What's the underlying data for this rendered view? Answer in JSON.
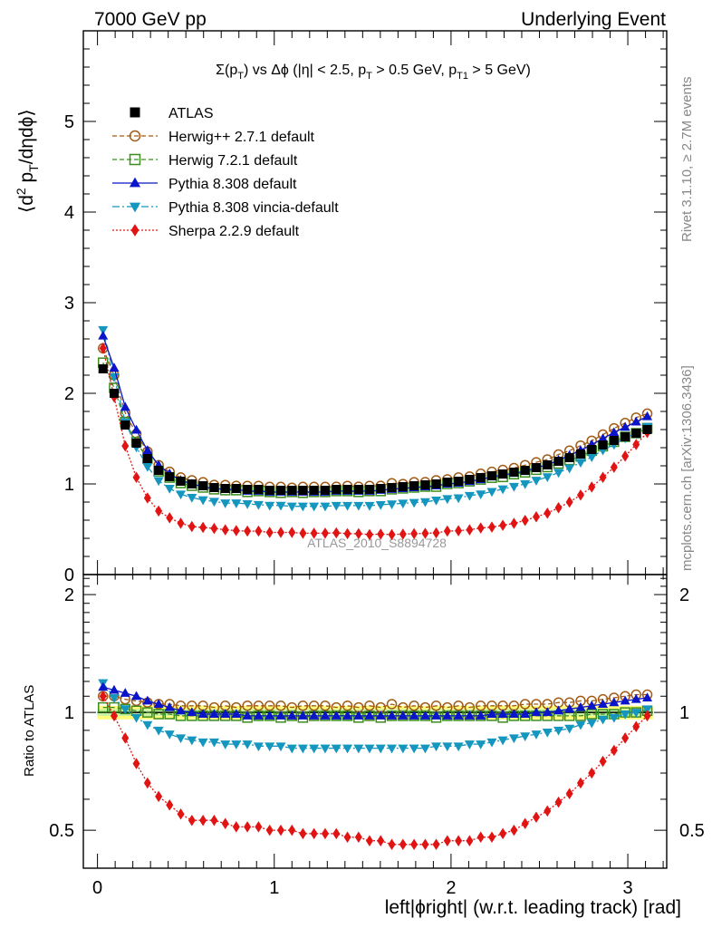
{
  "header": {
    "left_label": "7000 GeV pp",
    "right_label": "Underlying Event"
  },
  "side_labels": {
    "right_upper": "Rivet 3.1.10, ≥ 2.7M events",
    "right_lower": "mcplots.cern.ch [arXiv:1306.3436]"
  },
  "watermark": "ATLAS_2010_S8894728",
  "chart_data": {
    "type": "line",
    "title": "Σ(p_T) vs Δϕ (|η| < 2.5, p_T > 0.5 GeV, p_T1 > 5 GeV)",
    "title_parts": {
      "sigma_a": "Σ(p",
      "sub_T1": "T",
      "part_b": ") vs Δϕ (|η| < 2.5, p",
      "sub_T2": "T",
      "part_c": " > 0.5 GeV, p",
      "sub_T3": "T1",
      "part_d": " > 5 GeV)"
    },
    "ylabel": "⟨d² p_T/dηdϕ⟩",
    "ylabel_parts": {
      "a": "⟨d",
      "sup2": "2",
      "b": " p",
      "subT": "T",
      "c": "/dηdϕ⟩"
    },
    "ratio_ylabel": "Ratio to ATLAS",
    "xlabel": "left|ϕright| (w.r.t. leading track) [rad]",
    "xlim": [
      -0.08,
      3.22
    ],
    "ylim": [
      0,
      6.0
    ],
    "ratio_ylim": [
      0.4,
      2.25
    ],
    "xticks": [
      0,
      1,
      2,
      3
    ],
    "yticks": [
      0,
      1,
      2,
      3,
      4,
      5
    ],
    "ratio_yticks": [
      {
        "value": 0.5,
        "label": "0.5"
      },
      {
        "value": 1,
        "label": "1"
      },
      {
        "value": 2,
        "label": "2"
      }
    ],
    "legend_position": "top-left",
    "grid": false,
    "x": [
      0.0314,
      0.0942,
      0.157,
      0.22,
      0.283,
      0.346,
      0.408,
      0.471,
      0.534,
      0.597,
      0.66,
      0.723,
      0.785,
      0.848,
      0.911,
      0.974,
      1.037,
      1.1,
      1.162,
      1.225,
      1.288,
      1.351,
      1.414,
      1.477,
      1.539,
      1.602,
      1.665,
      1.728,
      1.791,
      1.854,
      1.916,
      1.979,
      2.042,
      2.105,
      2.168,
      2.231,
      2.293,
      2.356,
      2.419,
      2.482,
      2.545,
      2.608,
      2.67,
      2.733,
      2.796,
      2.859,
      2.922,
      2.985,
      3.047,
      3.11
    ],
    "atlas_values": [
      2.27,
      2.0,
      1.65,
      1.45,
      1.28,
      1.15,
      1.08,
      1.03,
      1.0,
      0.98,
      0.96,
      0.95,
      0.95,
      0.94,
      0.94,
      0.93,
      0.93,
      0.93,
      0.93,
      0.93,
      0.93,
      0.94,
      0.94,
      0.94,
      0.94,
      0.95,
      0.96,
      0.97,
      0.98,
      0.99,
      1.0,
      1.02,
      1.03,
      1.05,
      1.07,
      1.09,
      1.11,
      1.13,
      1.15,
      1.18,
      1.21,
      1.25,
      1.29,
      1.33,
      1.38,
      1.43,
      1.48,
      1.52,
      1.56,
      1.6
    ],
    "atlas_band_halfwidth": 0.04,
    "atlas_band_inner_halfwidth": 0.02,
    "series": [
      {
        "name": "ATLAS",
        "color": "#000000",
        "marker": "square-filled",
        "line": "none",
        "ratio": [
          1,
          1,
          1,
          1,
          1,
          1,
          1,
          1,
          1,
          1,
          1,
          1,
          1,
          1,
          1,
          1,
          1,
          1,
          1,
          1,
          1,
          1,
          1,
          1,
          1,
          1,
          1,
          1,
          1,
          1,
          1,
          1,
          1,
          1,
          1,
          1,
          1,
          1,
          1,
          1,
          1,
          1,
          1,
          1,
          1,
          1,
          1,
          1,
          1,
          1
        ]
      },
      {
        "name": "Herwig++ 2.7.1 default",
        "color": "#a05a14",
        "marker": "circle-open",
        "line": "dashed",
        "ratio": [
          1.1,
          1.1,
          1.08,
          1.07,
          1.06,
          1.05,
          1.05,
          1.04,
          1.04,
          1.04,
          1.03,
          1.04,
          1.03,
          1.04,
          1.04,
          1.04,
          1.04,
          1.03,
          1.04,
          1.04,
          1.04,
          1.03,
          1.04,
          1.03,
          1.04,
          1.03,
          1.05,
          1.03,
          1.04,
          1.03,
          1.04,
          1.03,
          1.04,
          1.03,
          1.04,
          1.04,
          1.04,
          1.04,
          1.05,
          1.05,
          1.05,
          1.06,
          1.06,
          1.07,
          1.07,
          1.08,
          1.09,
          1.1,
          1.11,
          1.11
        ]
      },
      {
        "name": "Herwig 7.2.1 default",
        "color": "#3c8c1e",
        "marker": "square-open",
        "line": "dashed",
        "ratio": [
          1.03,
          1.03,
          1.02,
          1.01,
          1.0,
          0.99,
          0.99,
          0.98,
          0.98,
          0.98,
          0.98,
          0.98,
          0.98,
          0.97,
          0.98,
          0.98,
          0.97,
          0.98,
          0.97,
          0.98,
          0.98,
          0.98,
          0.98,
          0.97,
          0.98,
          0.97,
          0.98,
          0.98,
          0.98,
          0.98,
          0.97,
          0.98,
          0.98,
          0.98,
          0.98,
          0.98,
          0.97,
          0.98,
          0.98,
          0.98,
          0.98,
          0.98,
          0.98,
          0.98,
          0.99,
          0.99,
          0.99,
          1.0,
          1.0,
          1.01
        ]
      },
      {
        "name": "Pythia 8.308 default",
        "color": "#0a14c8",
        "marker": "triangle-up",
        "line": "solid",
        "ratio": [
          1.16,
          1.14,
          1.12,
          1.1,
          1.07,
          1.05,
          1.03,
          1.01,
          1.0,
          0.99,
          0.99,
          0.99,
          0.99,
          0.98,
          0.98,
          0.98,
          0.98,
          0.98,
          0.98,
          0.98,
          0.98,
          0.98,
          0.98,
          0.98,
          0.98,
          0.98,
          0.98,
          0.98,
          0.98,
          0.98,
          0.98,
          0.98,
          0.98,
          0.98,
          0.98,
          0.99,
          0.99,
          0.99,
          0.99,
          1.0,
          1.0,
          1.01,
          1.02,
          1.03,
          1.04,
          1.05,
          1.06,
          1.07,
          1.08,
          1.09
        ]
      },
      {
        "name": "Pythia 8.308 vincia-default",
        "color": "#1496be",
        "marker": "triangle-down",
        "line": "dashdot",
        "ratio": [
          1.19,
          1.09,
          1.02,
          0.97,
          0.93,
          0.9,
          0.88,
          0.86,
          0.85,
          0.84,
          0.84,
          0.83,
          0.83,
          0.83,
          0.82,
          0.82,
          0.82,
          0.81,
          0.81,
          0.81,
          0.81,
          0.81,
          0.81,
          0.81,
          0.81,
          0.81,
          0.81,
          0.81,
          0.81,
          0.81,
          0.82,
          0.82,
          0.82,
          0.83,
          0.83,
          0.84,
          0.85,
          0.86,
          0.87,
          0.88,
          0.89,
          0.9,
          0.91,
          0.93,
          0.94,
          0.96,
          0.97,
          0.99,
          1.0,
          1.02
        ]
      },
      {
        "name": "Sherpa 2.2.9 default",
        "color": "#e11414",
        "marker": "diamond",
        "line": "dotted",
        "ratio": [
          1.1,
          0.98,
          0.86,
          0.74,
          0.66,
          0.61,
          0.58,
          0.55,
          0.53,
          0.53,
          0.53,
          0.52,
          0.51,
          0.51,
          0.51,
          0.5,
          0.5,
          0.5,
          0.49,
          0.49,
          0.49,
          0.49,
          0.48,
          0.48,
          0.47,
          0.47,
          0.46,
          0.46,
          0.46,
          0.46,
          0.46,
          0.47,
          0.47,
          0.47,
          0.48,
          0.48,
          0.49,
          0.5,
          0.52,
          0.54,
          0.56,
          0.59,
          0.62,
          0.66,
          0.7,
          0.75,
          0.8,
          0.86,
          0.92,
          0.98
        ]
      }
    ]
  }
}
